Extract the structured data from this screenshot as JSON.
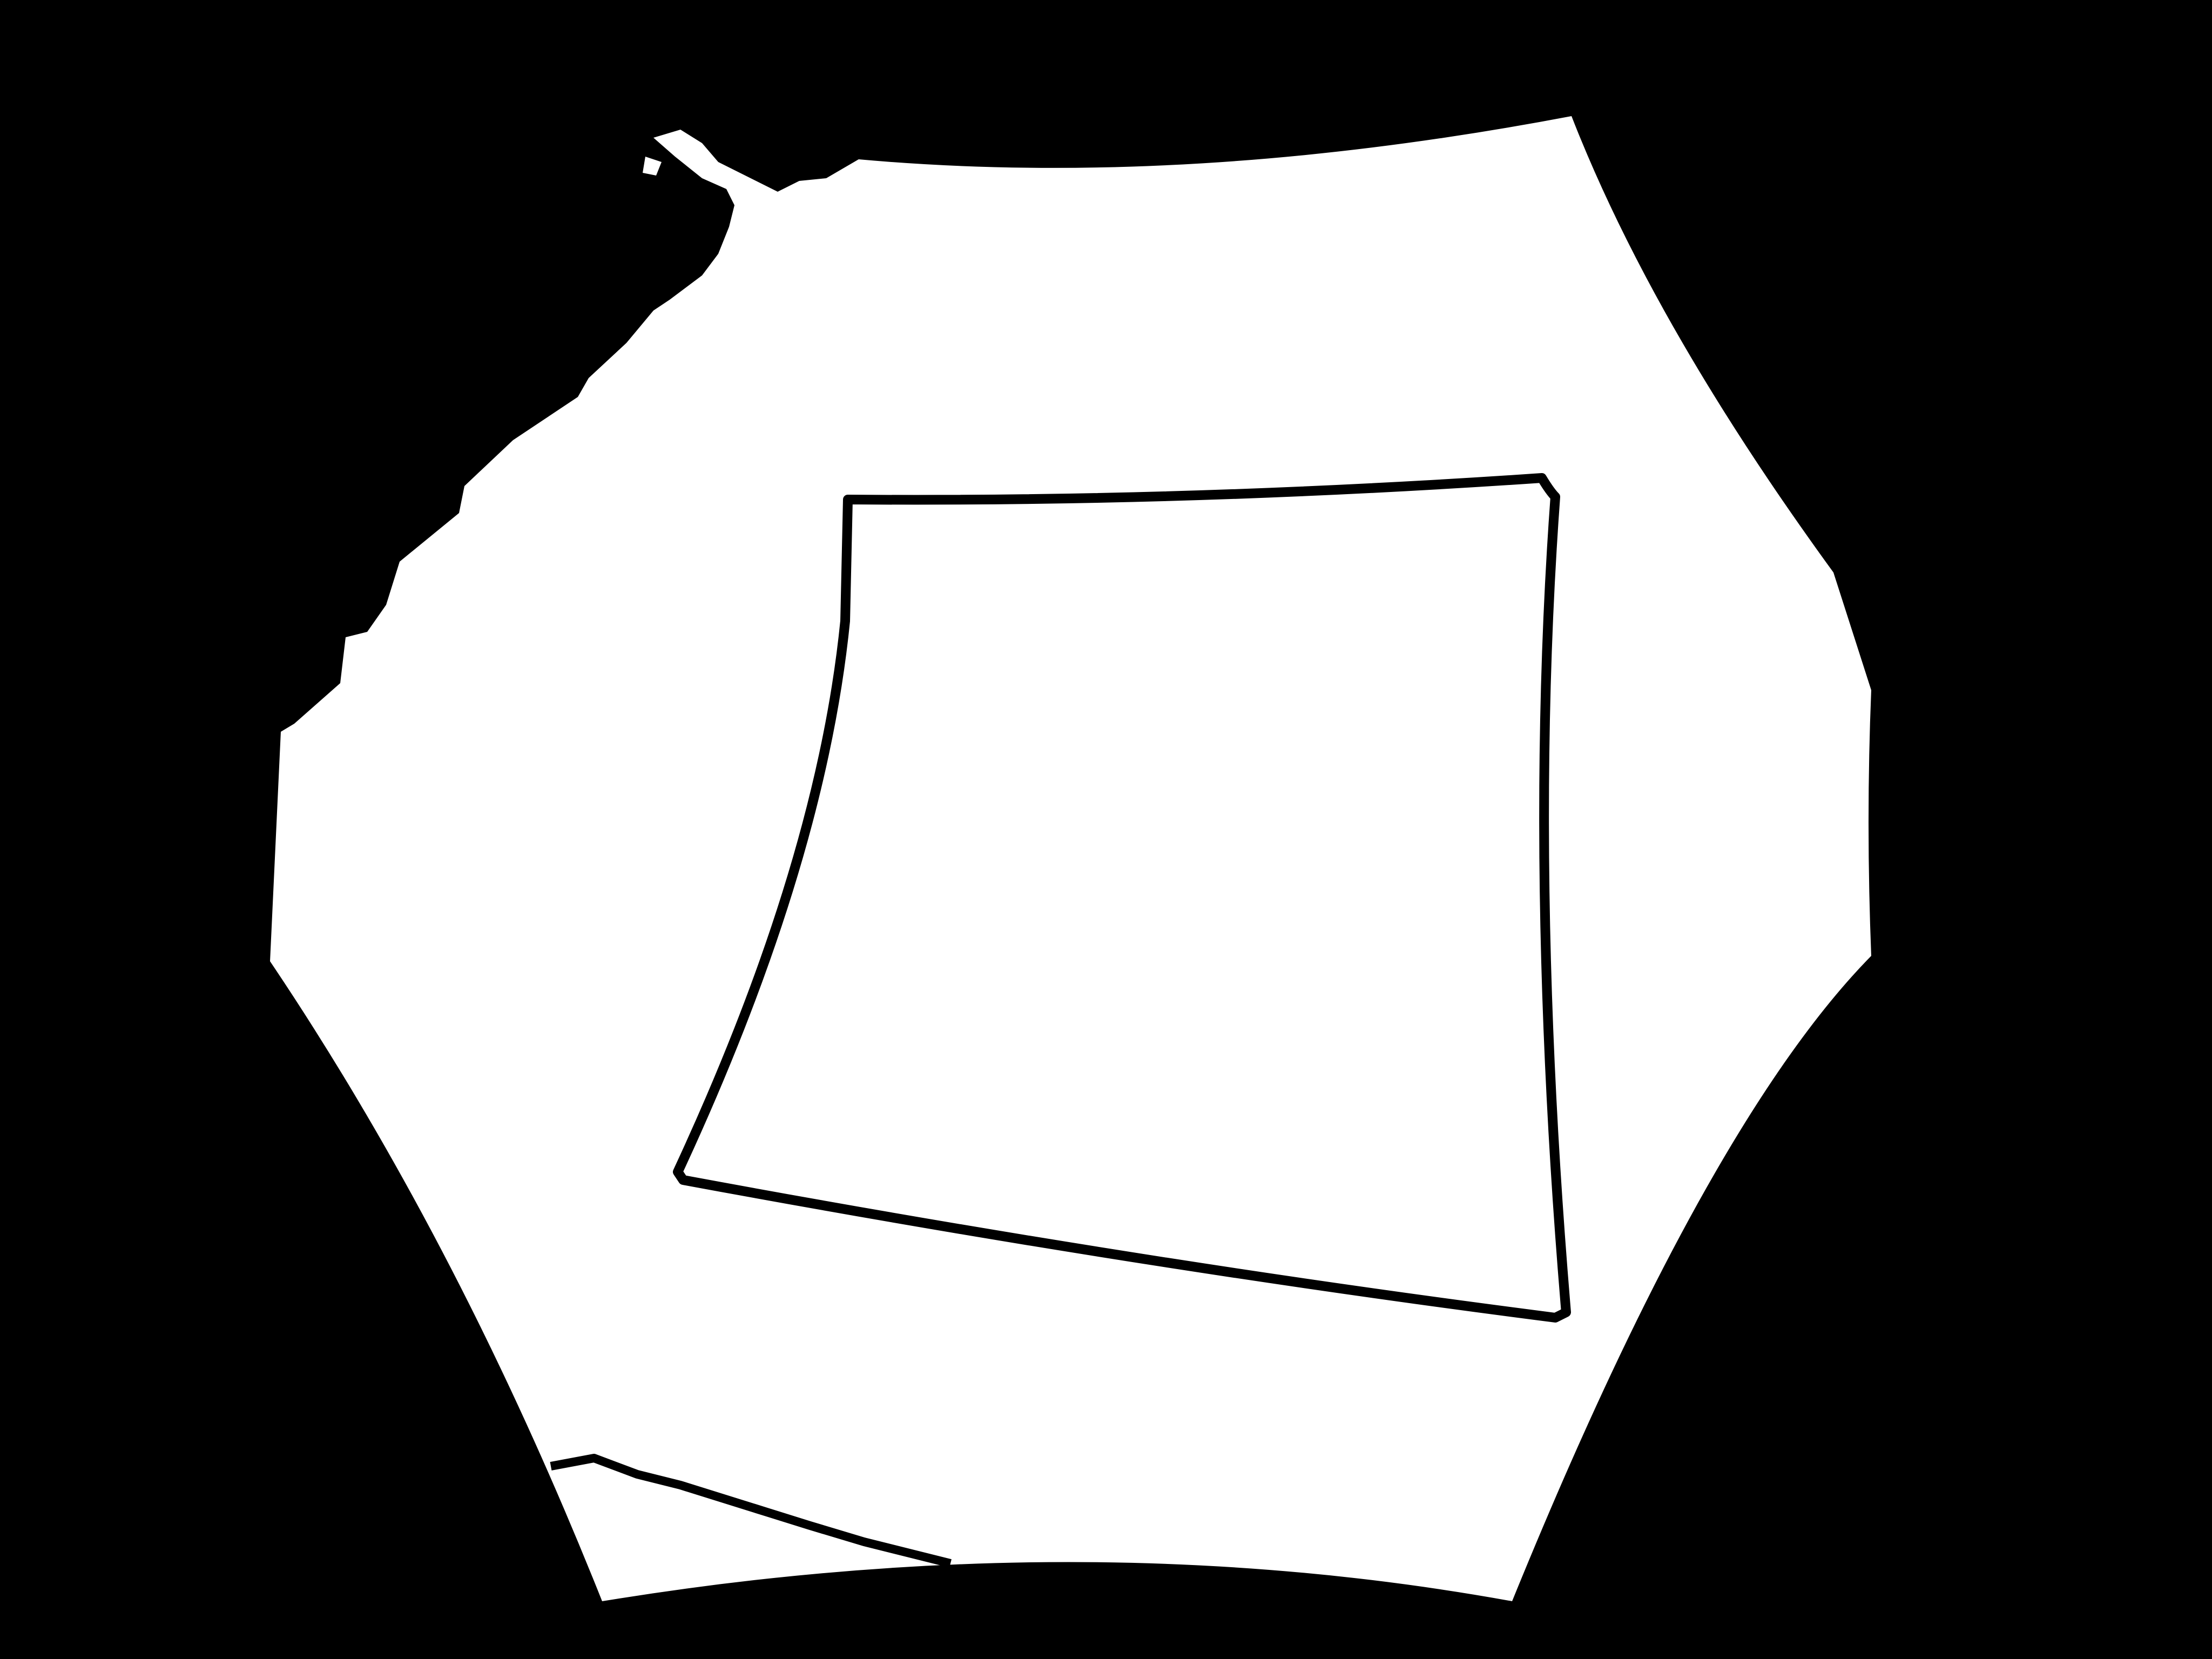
{
  "image": {
    "description_tags": [
      "binary-mask",
      "irregular-polygon",
      "inner-quadrilateral-outline"
    ],
    "colors": {
      "background": "#000000",
      "foreground": "#ffffff",
      "outline": "#000000"
    }
  }
}
